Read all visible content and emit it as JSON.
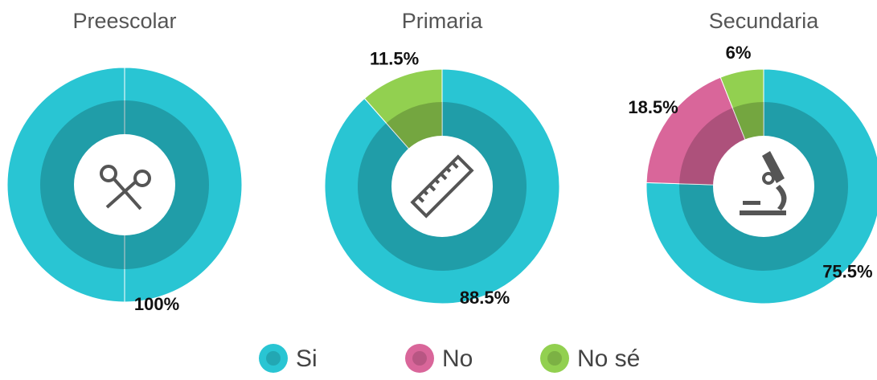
{
  "chart_data": [
    {
      "type": "pie",
      "title": "Preescolar",
      "values": [
        100
      ],
      "value_labels": [
        "100%"
      ],
      "colors": [
        "#29c5d3"
      ]
    },
    {
      "type": "pie",
      "title": "Primaria",
      "values": [
        88.5,
        11.5
      ],
      "value_labels": [
        "88.5%",
        "11.5%"
      ],
      "colors": [
        "#29c5d3",
        "#92d050"
      ]
    },
    {
      "type": "pie",
      "title": "Secundaria",
      "values": [
        75.5,
        18.5,
        6
      ],
      "value_labels": [
        "75.5%",
        "18.5%",
        "6%"
      ],
      "colors": [
        "#29c5d3",
        "#d9669a",
        "#92d050"
      ]
    }
  ],
  "legend": {
    "items": [
      {
        "name": "Si",
        "color": "#29c5d3"
      },
      {
        "name": "No",
        "color": "#d9669a"
      },
      {
        "name": "No sé",
        "color": "#92d050"
      }
    ]
  }
}
